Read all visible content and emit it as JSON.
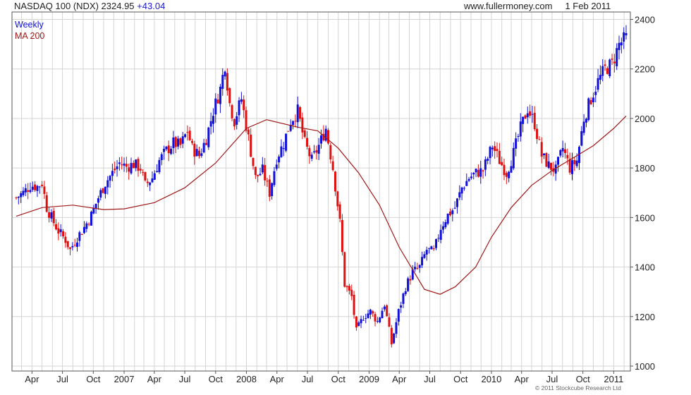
{
  "header": {
    "symbol": "NASDAQ 100 (NDX)",
    "last": "2324.95",
    "change": "+43.04",
    "site": "www.fullermoney.com",
    "date": "1 Feb 2011"
  },
  "copyright": "© 2011 Stockcube Research Ltd",
  "colors": {
    "up": "#1010d8",
    "down": "#e01010",
    "ma": "#a01818",
    "grid": "#d4d4d4",
    "frame": "#555555"
  },
  "chart_data": {
    "type": "candlestick",
    "title": "NASDAQ 100 (NDX)",
    "frequency": "Weekly",
    "grid": true,
    "legend_position": "top-left",
    "y_axis_position": "right",
    "ylim": [
      980,
      2430
    ],
    "y_ticks": [
      1000,
      1200,
      1400,
      1600,
      1800,
      2000,
      2200,
      2400
    ],
    "x_range": [
      "2006-02-13",
      "2011-02-07"
    ],
    "x_ticks": [
      {
        "label": "Apr",
        "date": "2006-04-01"
      },
      {
        "label": "Jul",
        "date": "2006-07-01"
      },
      {
        "label": "Oct",
        "date": "2006-10-01"
      },
      {
        "label": "2007",
        "date": "2007-01-01"
      },
      {
        "label": "Apr",
        "date": "2007-04-01"
      },
      {
        "label": "Jul",
        "date": "2007-07-01"
      },
      {
        "label": "Oct",
        "date": "2007-10-01"
      },
      {
        "label": "2008",
        "date": "2008-01-01"
      },
      {
        "label": "Apr",
        "date": "2008-04-01"
      },
      {
        "label": "Jul",
        "date": "2008-07-01"
      },
      {
        "label": "Oct",
        "date": "2008-10-01"
      },
      {
        "label": "2009",
        "date": "2009-01-01"
      },
      {
        "label": "Apr",
        "date": "2009-04-01"
      },
      {
        "label": "Jul",
        "date": "2009-07-01"
      },
      {
        "label": "Oct",
        "date": "2009-10-01"
      },
      {
        "label": "2010",
        "date": "2010-01-01"
      },
      {
        "label": "Apr",
        "date": "2010-04-01"
      },
      {
        "label": "Jul",
        "date": "2010-07-01"
      },
      {
        "label": "Oct",
        "date": "2010-10-01"
      },
      {
        "label": "2011",
        "date": "2011-01-01"
      }
    ],
    "series": [
      {
        "name": "Weekly",
        "kind": "close",
        "color": "#1010d8",
        "points": [
          [
            "2006-02-13",
            1680
          ],
          [
            "2006-03-06",
            1700
          ],
          [
            "2006-03-27",
            1730
          ],
          [
            "2006-04-17",
            1725
          ],
          [
            "2006-05-01",
            1740
          ],
          [
            "2006-05-15",
            1640
          ],
          [
            "2006-06-05",
            1580
          ],
          [
            "2006-06-19",
            1545
          ],
          [
            "2006-07-10",
            1510
          ],
          [
            "2006-07-24",
            1470
          ],
          [
            "2006-08-14",
            1520
          ],
          [
            "2006-09-04",
            1560
          ],
          [
            "2006-09-25",
            1610
          ],
          [
            "2006-10-16",
            1680
          ],
          [
            "2006-11-06",
            1740
          ],
          [
            "2006-11-27",
            1780
          ],
          [
            "2006-12-18",
            1820
          ],
          [
            "2007-01-08",
            1805
          ],
          [
            "2007-01-29",
            1815
          ],
          [
            "2007-02-19",
            1800
          ],
          [
            "2007-03-05",
            1730
          ],
          [
            "2007-03-26",
            1760
          ],
          [
            "2007-04-16",
            1830
          ],
          [
            "2007-05-07",
            1870
          ],
          [
            "2007-05-28",
            1900
          ],
          [
            "2007-06-18",
            1890
          ],
          [
            "2007-07-09",
            1950
          ],
          [
            "2007-07-23",
            1880
          ],
          [
            "2007-08-13",
            1850
          ],
          [
            "2007-09-03",
            1920
          ],
          [
            "2007-09-24",
            2030
          ],
          [
            "2007-10-15",
            2120
          ],
          [
            "2007-10-29",
            2220
          ],
          [
            "2007-11-12",
            2060
          ],
          [
            "2007-11-26",
            1990
          ],
          [
            "2007-12-17",
            2080
          ],
          [
            "2008-01-07",
            1920
          ],
          [
            "2008-01-28",
            1760
          ],
          [
            "2008-02-18",
            1790
          ],
          [
            "2008-03-10",
            1700
          ],
          [
            "2008-03-31",
            1840
          ],
          [
            "2008-04-21",
            1900
          ],
          [
            "2008-05-12",
            1990
          ],
          [
            "2008-06-02",
            2030
          ],
          [
            "2008-06-23",
            1900
          ],
          [
            "2008-07-14",
            1830
          ],
          [
            "2008-08-04",
            1890
          ],
          [
            "2008-08-25",
            1960
          ],
          [
            "2008-09-15",
            1800
          ],
          [
            "2008-10-06",
            1580
          ],
          [
            "2008-10-20",
            1330
          ],
          [
            "2008-11-10",
            1280
          ],
          [
            "2008-11-24",
            1140
          ],
          [
            "2008-12-15",
            1200
          ],
          [
            "2009-01-05",
            1220
          ],
          [
            "2009-01-26",
            1180
          ],
          [
            "2009-02-16",
            1250
          ],
          [
            "2009-03-09",
            1090
          ],
          [
            "2009-03-30",
            1220
          ],
          [
            "2009-04-20",
            1320
          ],
          [
            "2009-05-11",
            1380
          ],
          [
            "2009-06-01",
            1400
          ],
          [
            "2009-06-22",
            1470
          ],
          [
            "2009-07-13",
            1460
          ],
          [
            "2009-08-03",
            1560
          ],
          [
            "2009-08-24",
            1610
          ],
          [
            "2009-09-14",
            1640
          ],
          [
            "2009-10-05",
            1720
          ],
          [
            "2009-10-26",
            1760
          ],
          [
            "2009-11-16",
            1780
          ],
          [
            "2009-12-07",
            1790
          ],
          [
            "2010-01-04",
            1890
          ],
          [
            "2010-01-25",
            1830
          ],
          [
            "2010-02-15",
            1780
          ],
          [
            "2010-03-08",
            1860
          ],
          [
            "2010-03-29",
            1960
          ],
          [
            "2010-04-19",
            2040
          ],
          [
            "2010-05-10",
            1980
          ],
          [
            "2010-05-31",
            1850
          ],
          [
            "2010-06-21",
            1810
          ],
          [
            "2010-07-12",
            1790
          ],
          [
            "2010-08-02",
            1880
          ],
          [
            "2010-08-23",
            1800
          ],
          [
            "2010-09-13",
            1830
          ],
          [
            "2010-10-04",
            2000
          ],
          [
            "2010-10-25",
            2080
          ],
          [
            "2010-11-15",
            2150
          ],
          [
            "2010-12-06",
            2200
          ],
          [
            "2010-12-27",
            2220
          ],
          [
            "2011-01-17",
            2300
          ],
          [
            "2011-02-07",
            2325
          ]
        ]
      },
      {
        "name": "MA 200",
        "kind": "line",
        "color": "#a01818",
        "points": [
          [
            "2006-02-13",
            1605
          ],
          [
            "2006-05-01",
            1640
          ],
          [
            "2006-08-01",
            1650
          ],
          [
            "2006-11-01",
            1632
          ],
          [
            "2007-01-01",
            1635
          ],
          [
            "2007-04-01",
            1660
          ],
          [
            "2007-07-01",
            1720
          ],
          [
            "2007-10-01",
            1820
          ],
          [
            "2008-01-01",
            1960
          ],
          [
            "2008-03-01",
            1995
          ],
          [
            "2008-06-01",
            1965
          ],
          [
            "2008-08-01",
            1950
          ],
          [
            "2008-10-01",
            1880
          ],
          [
            "2008-12-01",
            1780
          ],
          [
            "2009-02-01",
            1650
          ],
          [
            "2009-04-01",
            1480
          ],
          [
            "2009-05-15",
            1380
          ],
          [
            "2009-06-15",
            1310
          ],
          [
            "2009-08-01",
            1290
          ],
          [
            "2009-09-15",
            1320
          ],
          [
            "2009-11-15",
            1400
          ],
          [
            "2010-01-01",
            1520
          ],
          [
            "2010-03-01",
            1640
          ],
          [
            "2010-05-01",
            1730
          ],
          [
            "2010-07-01",
            1790
          ],
          [
            "2010-09-01",
            1840
          ],
          [
            "2010-11-01",
            1890
          ],
          [
            "2011-01-01",
            1960
          ],
          [
            "2011-02-07",
            2010
          ]
        ]
      }
    ]
  }
}
